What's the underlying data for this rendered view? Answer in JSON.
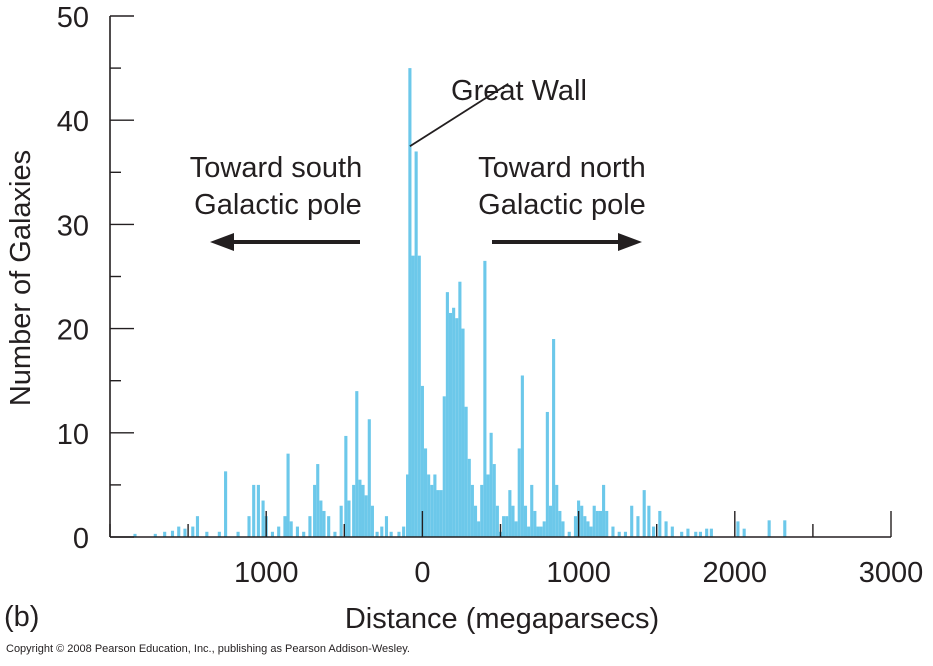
{
  "chart_data": {
    "type": "bar",
    "ylabel": "Number of Galaxies",
    "xlabel": "Distance (megaparsecs)",
    "panel_label": "(b)",
    "xlim": [
      -2000,
      3000
    ],
    "ylim": [
      0,
      50
    ],
    "x_tick_labels": [
      {
        "value": -1000,
        "label": "1000"
      },
      {
        "value": 0,
        "label": "0"
      },
      {
        "value": 1000,
        "label": "1000"
      },
      {
        "value": 2000,
        "label": "2000"
      },
      {
        "value": 3000,
        "label": "3000"
      }
    ],
    "y_tick_labels": [
      {
        "value": 0,
        "label": "0"
      },
      {
        "value": 10,
        "label": "10"
      },
      {
        "value": 20,
        "label": "20"
      },
      {
        "value": 30,
        "label": "30"
      },
      {
        "value": 40,
        "label": "40"
      },
      {
        "value": 50,
        "label": "50"
      }
    ],
    "y_minor_step": 5,
    "x_minor_step": 500,
    "bar_color": "#6cc8ea",
    "axis_color": "#231f20",
    "bins": [
      [
        -1840,
        0.3
      ],
      [
        -1710,
        0.3
      ],
      [
        -1650,
        0.5
      ],
      [
        -1600,
        0.6
      ],
      [
        -1560,
        1.0
      ],
      [
        -1520,
        0.8
      ],
      [
        -1470,
        1.0
      ],
      [
        -1440,
        2.0
      ],
      [
        -1380,
        0.5
      ],
      [
        -1300,
        0.5
      ],
      [
        -1260,
        6.3
      ],
      [
        -1180,
        0.5
      ],
      [
        -1110,
        2.0
      ],
      [
        -1080,
        5.0
      ],
      [
        -1050,
        5.0
      ],
      [
        -1020,
        3.5
      ],
      [
        -1000,
        2.0
      ],
      [
        -960,
        0.5
      ],
      [
        -920,
        1.0
      ],
      [
        -880,
        2.0
      ],
      [
        -860,
        8.0
      ],
      [
        -840,
        1.5
      ],
      [
        -800,
        1.0
      ],
      [
        -760,
        0.5
      ],
      [
        -720,
        2.0
      ],
      [
        -690,
        5.0
      ],
      [
        -670,
        7.0
      ],
      [
        -650,
        3.5
      ],
      [
        -630,
        2.5
      ],
      [
        -600,
        2.0
      ],
      [
        -560,
        0.5
      ],
      [
        -520,
        3.0
      ],
      [
        -490,
        9.7
      ],
      [
        -470,
        3.5
      ],
      [
        -440,
        5.0
      ],
      [
        -420,
        14.0
      ],
      [
        -400,
        5.5
      ],
      [
        -380,
        5.0
      ],
      [
        -360,
        4.0
      ],
      [
        -340,
        11.3
      ],
      [
        -320,
        3.0
      ],
      [
        -290,
        0.5
      ],
      [
        -260,
        1.0
      ],
      [
        -230,
        2.0
      ],
      [
        -200,
        0.5
      ],
      [
        -150,
        0.5
      ],
      [
        -120,
        1.0
      ],
      [
        -95,
        6.0
      ],
      [
        -80,
        45.0
      ],
      [
        -60,
        27.0
      ],
      [
        -40,
        37.0
      ],
      [
        -20,
        27.0
      ],
      [
        0,
        14.5
      ],
      [
        20,
        8.5
      ],
      [
        40,
        6.0
      ],
      [
        60,
        5.0
      ],
      [
        80,
        6.0
      ],
      [
        100,
        4.5
      ],
      [
        120,
        4.5
      ],
      [
        140,
        13.5
      ],
      [
        160,
        23.5
      ],
      [
        180,
        21.5
      ],
      [
        200,
        22.0
      ],
      [
        220,
        21.0
      ],
      [
        240,
        24.5
      ],
      [
        260,
        20.0
      ],
      [
        280,
        12.5
      ],
      [
        300,
        7.5
      ],
      [
        320,
        5.0
      ],
      [
        340,
        3.0
      ],
      [
        360,
        1.5
      ],
      [
        380,
        5.0
      ],
      [
        400,
        26.5
      ],
      [
        420,
        6.0
      ],
      [
        440,
        10.0
      ],
      [
        460,
        7.0
      ],
      [
        480,
        3.0
      ],
      [
        500,
        0.5
      ],
      [
        520,
        2.0
      ],
      [
        540,
        2.0
      ],
      [
        560,
        4.5
      ],
      [
        580,
        3.0
      ],
      [
        600,
        1.5
      ],
      [
        620,
        8.5
      ],
      [
        640,
        15.5
      ],
      [
        660,
        3.0
      ],
      [
        680,
        1.0
      ],
      [
        700,
        5.0
      ],
      [
        720,
        2.5
      ],
      [
        740,
        1.0
      ],
      [
        760,
        1.0
      ],
      [
        780,
        1.5
      ],
      [
        800,
        12.0
      ],
      [
        820,
        3.0
      ],
      [
        840,
        19.0
      ],
      [
        860,
        5.0
      ],
      [
        880,
        2.5
      ],
      [
        900,
        1.5
      ],
      [
        940,
        0.5
      ],
      [
        980,
        2.0
      ],
      [
        1000,
        3.5
      ],
      [
        1020,
        3.0
      ],
      [
        1040,
        2.0
      ],
      [
        1060,
        1.5
      ],
      [
        1080,
        1.0
      ],
      [
        1100,
        3.0
      ],
      [
        1120,
        2.5
      ],
      [
        1140,
        2.5
      ],
      [
        1160,
        5.0
      ],
      [
        1180,
        2.5
      ],
      [
        1220,
        1.0
      ],
      [
        1260,
        0.5
      ],
      [
        1300,
        0.5
      ],
      [
        1340,
        3.0
      ],
      [
        1380,
        2.0
      ],
      [
        1420,
        4.5
      ],
      [
        1450,
        3.0
      ],
      [
        1480,
        1.0
      ],
      [
        1520,
        2.5
      ],
      [
        1560,
        1.5
      ],
      [
        1600,
        1.0
      ],
      [
        1660,
        0.5
      ],
      [
        1700,
        0.8
      ],
      [
        1750,
        0.5
      ],
      [
        1780,
        0.5
      ],
      [
        1820,
        0.8
      ],
      [
        1850,
        0.8
      ],
      [
        2020,
        1.5
      ],
      [
        2060,
        0.8
      ],
      [
        2220,
        1.6
      ],
      [
        2320,
        1.6
      ]
    ],
    "annotations": [
      {
        "text": "Great Wall",
        "x": -80,
        "y": 37.5,
        "text_x": 550,
        "text_y": 43.5
      },
      {
        "lines": [
          "Toward south",
          "Galactic pole"
        ],
        "x": -1000,
        "y": 32.5,
        "arrow": "left"
      },
      {
        "lines": [
          "Toward north",
          "Galactic pole"
        ],
        "x": 900,
        "y": 32.5,
        "arrow": "right"
      }
    ]
  },
  "footer": {
    "copyright": "Copyright © 2008 Pearson Education, Inc., publishing as Pearson Addison-Wesley."
  }
}
